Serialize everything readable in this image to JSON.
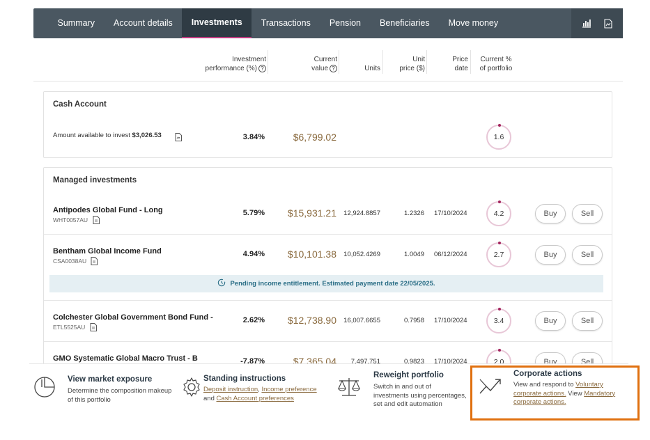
{
  "nav": {
    "tabs": [
      "Summary",
      "Account details",
      "Investments",
      "Transactions",
      "Pension",
      "Beneficiaries",
      "Move money"
    ],
    "active_tab": "Investments",
    "tools": [
      "bar-chart-icon",
      "document-chart-icon"
    ]
  },
  "columns": {
    "performance": [
      "Investment",
      "performance (%)"
    ],
    "current_value": [
      "Current",
      "value"
    ],
    "units": "Units",
    "unit_price": [
      "Unit",
      "price ($)"
    ],
    "price_date": [
      "Price",
      "date"
    ],
    "portfolio_pct": [
      "Current %",
      "of portfolio"
    ]
  },
  "cash": {
    "title": "Cash Account",
    "available_label": "Amount available to invest",
    "available_value": "$3,026.53",
    "performance": "3.84%",
    "current_value": "$6,799.02",
    "portfolio_pct": "1.6"
  },
  "managed": {
    "title": "Managed investments",
    "buy_label": "Buy",
    "sell_label": "Sell",
    "funds": [
      {
        "name": "Antipodes Global Fund - Long",
        "code": "WHT0057AU",
        "performance": "5.79%",
        "current_value": "$15,931.21",
        "units": "12,924.8857",
        "unit_price": "1.2326",
        "price_date": "17/10/2024",
        "portfolio_pct": "4.2"
      },
      {
        "name": "Bentham Global Income Fund",
        "code": "CSA0038AU",
        "performance": "4.94%",
        "current_value": "$10,101.38",
        "units": "10,052.4269",
        "unit_price": "1.0049",
        "price_date": "06/12/2024",
        "portfolio_pct": "2.7"
      },
      {
        "name": "Colchester Global Government Bond Fund -",
        "code": "ETL5525AU",
        "performance": "2.62%",
        "current_value": "$12,738.90",
        "units": "16,007.6655",
        "unit_price": "0.7958",
        "price_date": "17/10/2024",
        "portfolio_pct": "3.4"
      },
      {
        "name": "GMO Systematic Global Macro Trust - B",
        "code": "",
        "performance": "-7.87%",
        "current_value": "$7,365.04",
        "units": "7,497.751",
        "unit_price": "0.9823",
        "price_date": "17/10/2024",
        "portfolio_pct": "2.0"
      }
    ],
    "notice": "Pending income entitlement. Estimated payment date 22/05/2025."
  },
  "actions": {
    "market_exposure": {
      "title": "View market exposure",
      "desc": [
        "Determine the composition makeup",
        "of this portfolio"
      ]
    },
    "standing_instructions": {
      "title": "Standing instructions",
      "link1": "Deposit instruction",
      "sep": ",",
      "link2": "Income preference",
      "and": "and",
      "link3": "Cash Account preferences"
    },
    "reweight": {
      "title": "Reweight portfolio",
      "desc": [
        "Switch in and out of",
        "investments using percentages,",
        "set and edit automation"
      ]
    },
    "corporate": {
      "title": "Corporate actions",
      "pre": "View and respond to",
      "link1_a": "Voluntary",
      "link1_b": "corporate actions.",
      "mid": "View",
      "link2_a": "Mandatory",
      "link2_b": "corporate actions."
    }
  },
  "colors": {
    "nav_bg": "#4a5761",
    "accent": "#c0397f",
    "value_gold": "#8a6a3e",
    "highlight": "#e0700f"
  }
}
